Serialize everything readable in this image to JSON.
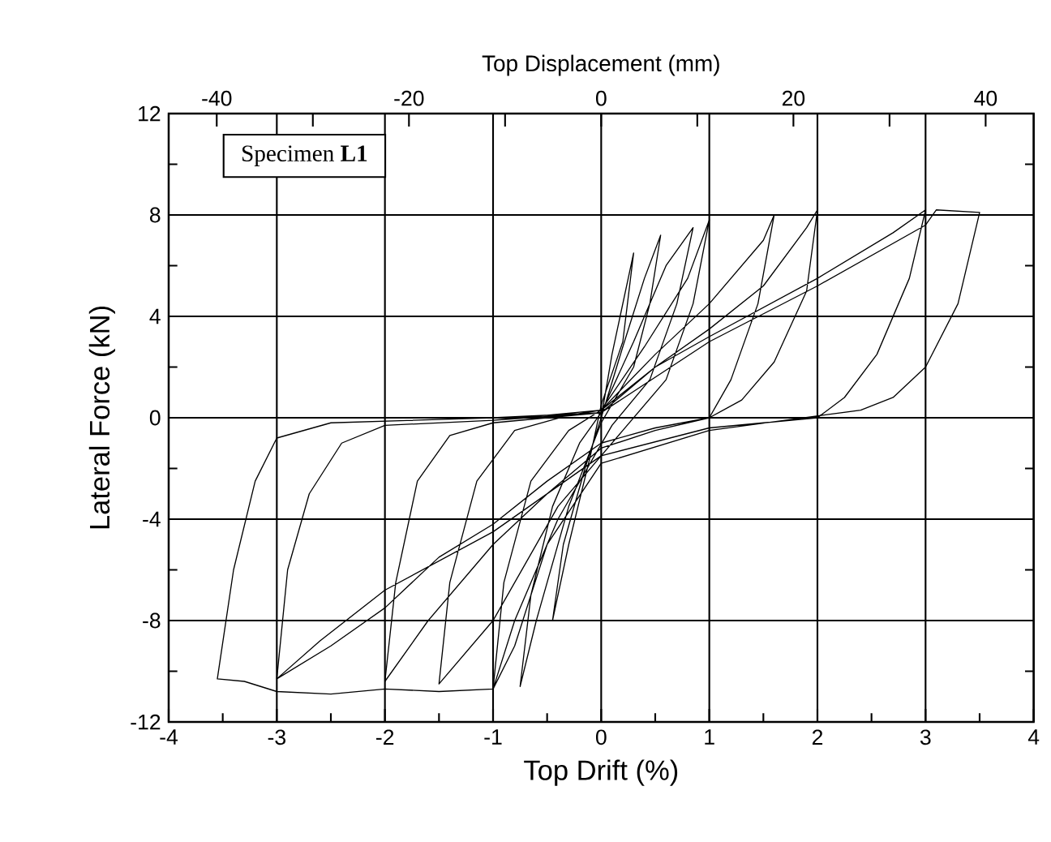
{
  "chart_data": {
    "type": "line",
    "xlabel": "Top Drift (%)",
    "ylabel": "Lateral Force (kN)",
    "x2label": "Top Displacement (mm)",
    "xlim": [
      -4,
      4
    ],
    "xticks": [
      -4,
      -3,
      -2,
      -1,
      0,
      1,
      2,
      3,
      4
    ],
    "ylim": [
      -12,
      12
    ],
    "yticks": [
      -12,
      -8,
      -4,
      0,
      4,
      8,
      12
    ],
    "x2lim": [
      -45,
      45
    ],
    "x2ticks": [
      -40,
      {
        "value": -30,
        "label": null
      },
      -20,
      {
        "value": -10,
        "label": null
      },
      0,
      {
        "value": 10,
        "label": null
      },
      20,
      {
        "value": 30,
        "label": null
      },
      40
    ],
    "grid": true,
    "marker": "none",
    "line_style": "solid",
    "annotations": [
      "Specimen **L1**"
    ],
    "series": [
      {
        "color": "#000000",
        "x": [
          0,
          0.1,
          0.25,
          0.3,
          0.2,
          0,
          -0.1,
          -0.3,
          -0.45,
          -0.35,
          -0.15,
          0,
          0.2,
          0.4,
          0.55,
          0.45,
          0.3,
          0,
          -0.3,
          -0.6,
          -0.75,
          -0.65,
          -0.45,
          -0.2,
          0,
          0.3,
          0.6,
          0.85,
          0.7,
          0.45,
          0.1,
          -0.4,
          -0.8,
          -1,
          -0.9,
          -0.65,
          -0.3,
          0,
          0.4,
          0.8,
          1,
          0.85,
          0.6,
          0.2,
          -0.4,
          -1,
          -1.5,
          -1.4,
          -1.15,
          -0.8,
          -0.3,
          0,
          0.5,
          1,
          1.5,
          1.6,
          1.45,
          1.2,
          1,
          0.5,
          0,
          -0.5,
          -1,
          -1.6,
          -2,
          -1.9,
          -1.7,
          -1.4,
          -1,
          0,
          0.5,
          1,
          1.5,
          1.9,
          2,
          1.9,
          1.6,
          1.3,
          1,
          0.5,
          0,
          -0.5,
          -1,
          -1.5,
          -2,
          -2.5,
          -3,
          -2.9,
          -2.7,
          -2.4,
          -2,
          -1,
          0,
          0.5,
          1,
          2,
          2.7,
          3,
          2.85,
          2.55,
          2.25,
          2,
          1,
          0,
          -0.5,
          -1,
          -2,
          -2.6,
          -3,
          -2.9,
          -2.7,
          -2.4,
          -2,
          -1,
          0,
          1,
          2,
          3,
          3.1,
          3.5,
          3.3,
          3,
          2.7,
          2.4,
          1,
          0,
          -0.5,
          -0.8,
          -1,
          -1.5,
          -2,
          -2.5,
          -3,
          -3.3,
          -3.55,
          -3.4,
          -3.2,
          -3,
          -2.5,
          -1,
          0
        ],
        "values": [
          0,
          2.5,
          5.5,
          6.5,
          3,
          0.5,
          -1.5,
          -5,
          -8,
          -5,
          -2,
          0,
          2.8,
          5.5,
          7.2,
          4.5,
          2,
          -0.2,
          -3.5,
          -8,
          -10.6,
          -7,
          -3.5,
          -1,
          0.2,
          3,
          6,
          7.5,
          4.5,
          1.5,
          -0.3,
          -4,
          -8,
          -10.7,
          -6.5,
          -2.5,
          -0.5,
          0.3,
          2.8,
          5.5,
          7.8,
          4.5,
          1.5,
          -0.5,
          -3.5,
          -8,
          -10.5,
          -6.5,
          -2.5,
          -0.5,
          0.1,
          0.3,
          2.5,
          4.5,
          7,
          8,
          4.5,
          1.5,
          0,
          -0.5,
          -1.2,
          -3,
          -5,
          -8,
          -10.4,
          -6.5,
          -2.5,
          -0.7,
          -0.2,
          0.2,
          2,
          3.5,
          5.2,
          7.5,
          8.2,
          5,
          2.2,
          0.7,
          0,
          -0.4,
          -1,
          -2.5,
          -4.2,
          -5.5,
          -7.5,
          -9,
          -10.3,
          -6,
          -3,
          -1,
          -0.3,
          -0.1,
          0.3,
          2,
          3.2,
          5.5,
          7.3,
          8.2,
          5.5,
          2.5,
          0.8,
          0,
          -0.4,
          -1.5,
          -3,
          -4.5,
          -6.8,
          -8.8,
          -10.3,
          -6,
          -3,
          -1,
          -0.3,
          -0.1,
          0.2,
          3,
          5.2,
          7.6,
          8.2,
          8.1,
          4.5,
          2,
          0.8,
          0.3,
          -0.5,
          -1.8,
          -5,
          -9,
          -10.7,
          -10.8,
          -10.7,
          -10.9,
          -10.8,
          -10.4,
          -10.3,
          -6,
          -2.5,
          -0.8,
          -0.2,
          0,
          0.2
        ]
      }
    ]
  }
}
